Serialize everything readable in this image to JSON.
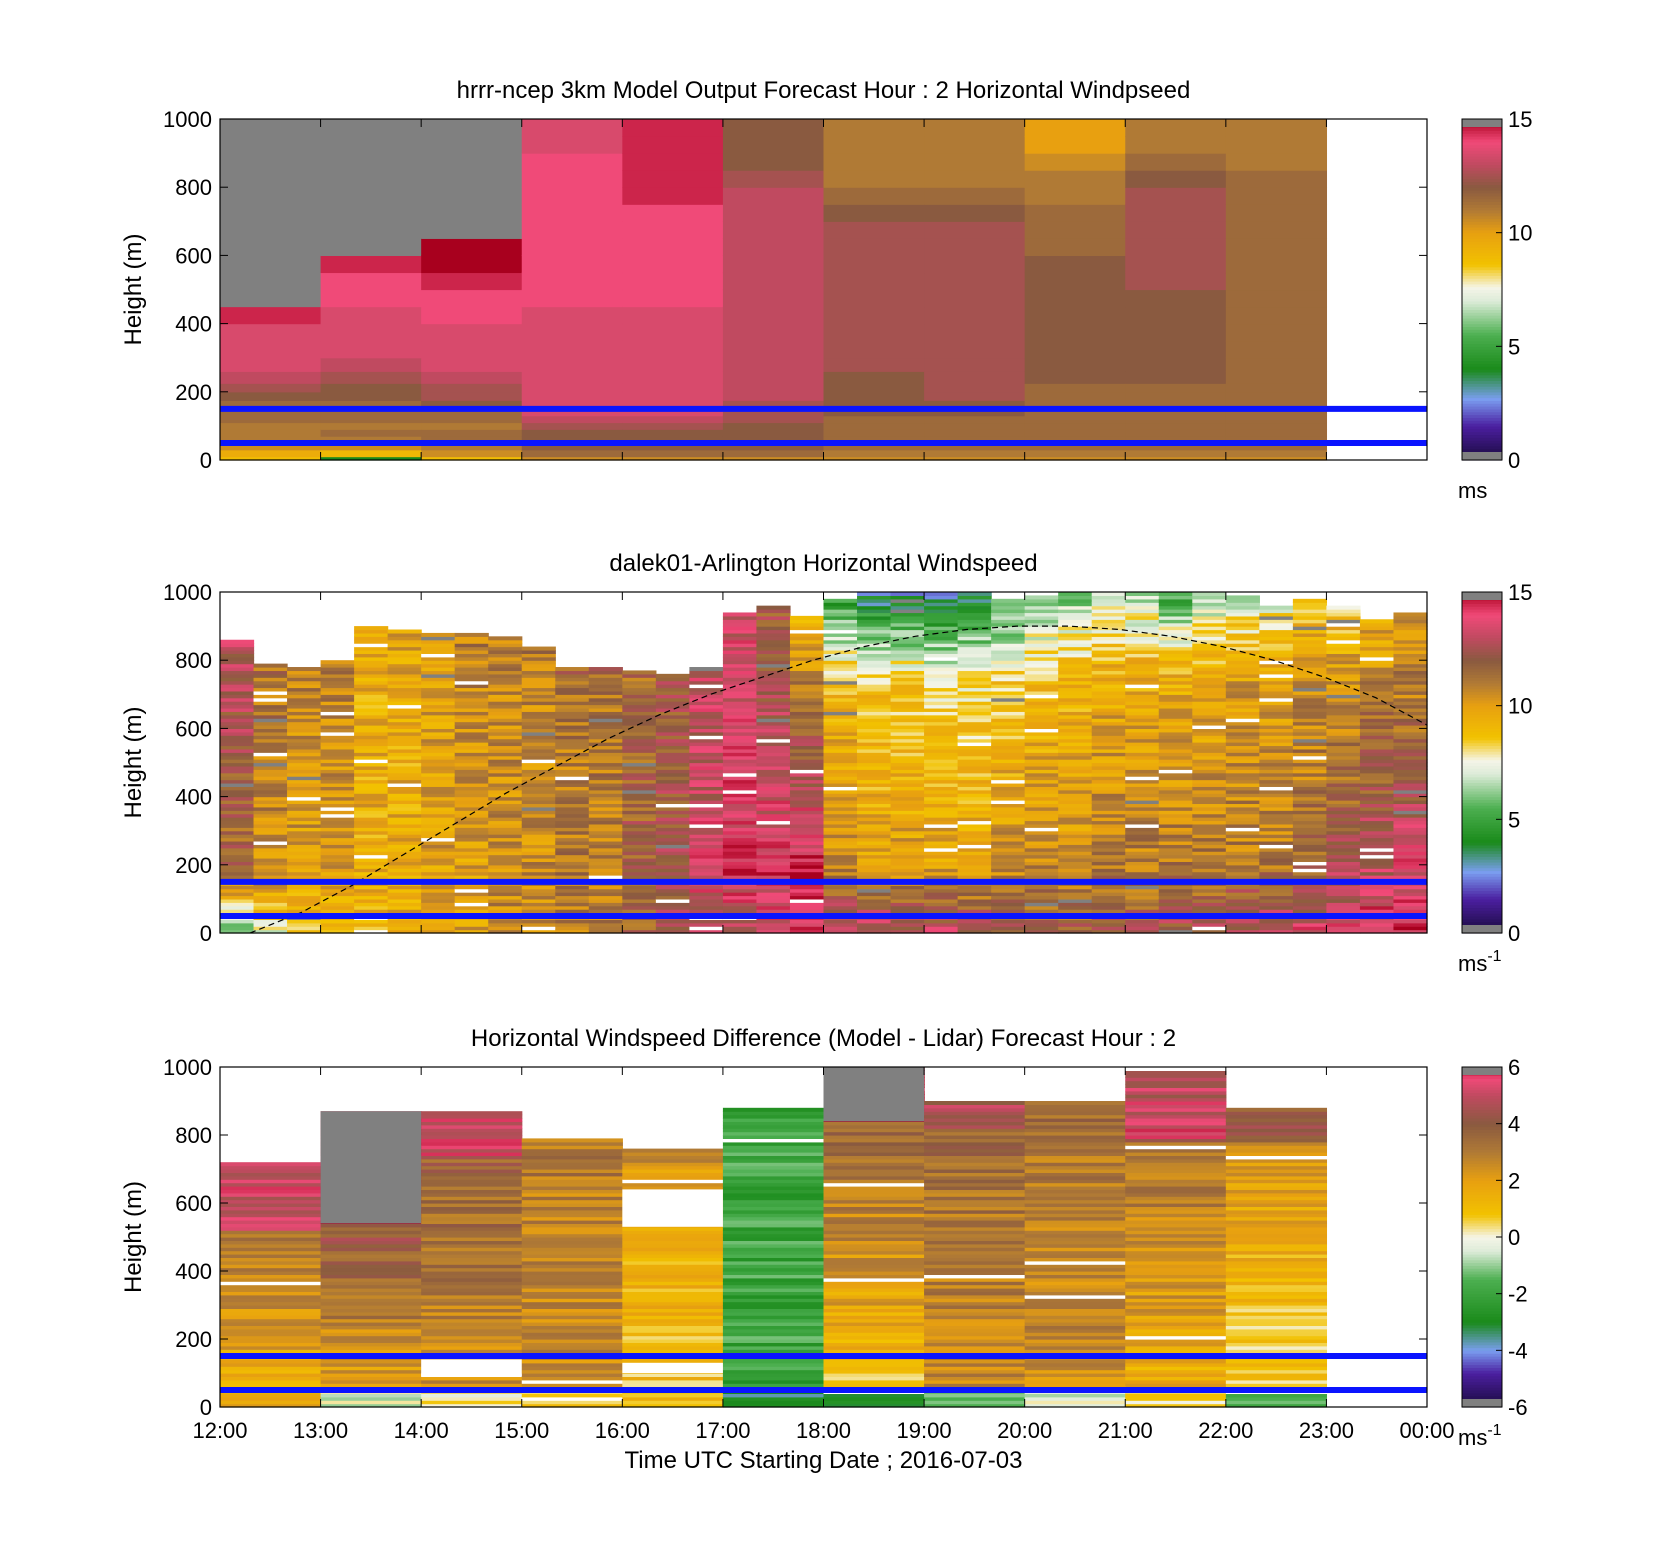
{
  "chart_data": [
    {
      "type": "heatmap",
      "title": "hrrr-ncep 3km Model Output   Forecast Hour : 2 Horizontal Windpseed",
      "ylabel": "Height (m)",
      "ylim": [
        0,
        1000
      ],
      "yticks": [
        "0",
        "200",
        "400",
        "600",
        "800",
        "1000"
      ],
      "x_time_range": [
        "12:00",
        "00:00"
      ],
      "colorbar": {
        "min": 0,
        "max": 15,
        "ticks": [
          "0",
          "5",
          "10",
          "15"
        ],
        "unit": "ms",
        "unit_sup": ""
      },
      "reference_lines_m": [
        150,
        50
      ],
      "hours": [
        "12:00",
        "13:00",
        "14:00",
        "15:00",
        "16:00",
        "17:00",
        "18:00",
        "19:00",
        "20:00",
        "21:00",
        "22:00"
      ],
      "levels_m": [
        10,
        30,
        50,
        70,
        90,
        110,
        130,
        150,
        175,
        200,
        225,
        260,
        300,
        350,
        400,
        450,
        500,
        550,
        600,
        650,
        700,
        750,
        800,
        850,
        900,
        950,
        1000
      ],
      "values_ms": [
        [
          8.8,
          9.5,
          10.5,
          11.0,
          11.0,
          11.0,
          11.5,
          11.5,
          11.5,
          12.0,
          12.5,
          13.0,
          13.5,
          13.5,
          13.5,
          14.5,
          null,
          null,
          null,
          null,
          null,
          null,
          null,
          null,
          null,
          null,
          null
        ],
        [
          4.0,
          9.0,
          10.5,
          11.0,
          11.5,
          11.0,
          11.5,
          11.5,
          11.5,
          12.0,
          12.0,
          12.5,
          13.0,
          13.5,
          13.5,
          13.5,
          14.0,
          14.0,
          14.5,
          null,
          null,
          null,
          null,
          null,
          null,
          null,
          null
        ],
        [
          8.8,
          10.5,
          11.0,
          11.5,
          11.5,
          11.0,
          11.5,
          11.5,
          12.0,
          12.5,
          12.5,
          13.0,
          13.5,
          13.5,
          13.5,
          14.0,
          14.0,
          14.5,
          15.0,
          15.0,
          null,
          null,
          null,
          null,
          null,
          null,
          null
        ],
        [
          10.5,
          11.5,
          12.0,
          12.0,
          12.0,
          12.5,
          13.0,
          13.5,
          13.5,
          13.5,
          13.5,
          13.5,
          13.5,
          13.5,
          13.5,
          13.5,
          14.0,
          14.0,
          14.0,
          14.0,
          14.0,
          14.0,
          14.0,
          14.0,
          14.0,
          13.5,
          13.5
        ],
        [
          10.5,
          11.5,
          12.0,
          12.0,
          12.0,
          12.5,
          13.0,
          13.5,
          13.5,
          13.5,
          13.5,
          13.5,
          13.5,
          13.5,
          13.5,
          13.5,
          14.0,
          14.0,
          14.0,
          14.0,
          14.0,
          14.0,
          14.5,
          14.5,
          14.5,
          14.5,
          14.5
        ],
        [
          10.5,
          11.5,
          12.0,
          12.0,
          12.0,
          12.0,
          12.5,
          12.5,
          12.5,
          13.0,
          13.0,
          13.0,
          13.0,
          13.0,
          13.0,
          13.0,
          13.0,
          13.0,
          13.0,
          13.0,
          13.0,
          13.0,
          13.0,
          12.5,
          12.0,
          12.0,
          12.0
        ],
        [
          10.5,
          11.0,
          11.5,
          11.5,
          11.5,
          11.5,
          11.5,
          12.0,
          12.0,
          12.0,
          12.0,
          12.0,
          12.5,
          12.5,
          12.5,
          12.5,
          12.5,
          12.5,
          12.5,
          12.5,
          12.5,
          12.0,
          11.5,
          11.0,
          11.0,
          11.0,
          11.0
        ],
        [
          10.5,
          11.0,
          11.5,
          11.5,
          11.5,
          11.5,
          11.5,
          12.0,
          12.0,
          12.5,
          12.5,
          12.5,
          12.5,
          12.5,
          12.5,
          12.5,
          12.5,
          12.5,
          12.5,
          12.5,
          12.5,
          12.0,
          11.5,
          11.0,
          11.0,
          11.0,
          11.0
        ],
        [
          10.5,
          11.0,
          11.5,
          11.5,
          11.5,
          11.5,
          11.5,
          11.5,
          11.5,
          11.5,
          11.5,
          12.0,
          12.0,
          12.0,
          12.0,
          12.0,
          12.0,
          12.0,
          12.0,
          11.5,
          11.5,
          11.5,
          11.0,
          11.0,
          10.5,
          10.0,
          10.0
        ],
        [
          10.5,
          11.0,
          11.5,
          11.5,
          11.5,
          11.5,
          11.5,
          11.5,
          11.5,
          11.5,
          11.5,
          12.0,
          12.0,
          12.0,
          12.0,
          12.0,
          12.0,
          12.5,
          12.5,
          12.5,
          12.5,
          12.5,
          12.5,
          12.0,
          11.5,
          11.0,
          11.0
        ],
        [
          10.5,
          11.0,
          11.5,
          11.5,
          11.5,
          11.5,
          11.5,
          11.5,
          11.5,
          11.5,
          11.5,
          11.5,
          11.5,
          11.5,
          11.5,
          11.5,
          11.5,
          11.5,
          11.5,
          11.5,
          11.5,
          11.5,
          11.5,
          11.5,
          11.0,
          11.0,
          11.0
        ]
      ]
    },
    {
      "type": "heatmap",
      "title": "dalek01-Arlington  Horizontal Windspeed",
      "ylabel": "Height (m)",
      "ylim": [
        0,
        1000
      ],
      "yticks": [
        "0",
        "200",
        "400",
        "600",
        "800",
        "1000"
      ],
      "x_time_range": [
        "12:00",
        "00:00"
      ],
      "colorbar": {
        "min": 0,
        "max": 15,
        "ticks": [
          "0",
          "5",
          "10",
          "15"
        ],
        "unit": "ms",
        "unit_sup": "-1"
      },
      "reference_lines_m": [
        150,
        50
      ],
      "column_times": [
        "12:00",
        "12:20",
        "12:40",
        "13:00",
        "13:20",
        "13:40",
        "14:00",
        "14:20",
        "14:40",
        "15:00",
        "15:20",
        "15:40",
        "16:00",
        "16:20",
        "16:40",
        "17:00",
        "17:20",
        "17:40",
        "18:00",
        "18:20",
        "18:40",
        "19:00",
        "19:20",
        "19:40",
        "20:00",
        "20:20",
        "20:40",
        "21:00",
        "21:20",
        "21:40",
        "22:00",
        "22:20",
        "22:40",
        "23:00",
        "23:20",
        "23:40"
      ],
      "top_of_data_m": [
        860,
        790,
        780,
        800,
        900,
        890,
        880,
        880,
        870,
        840,
        780,
        780,
        770,
        760,
        780,
        940,
        960,
        930,
        980,
        1000,
        1000,
        1000,
        1000,
        980,
        990,
        1000,
        1000,
        1000,
        1000,
        1000,
        990,
        960,
        980,
        960,
        920,
        940
      ],
      "low_level_speed_ms": [
        6.0,
        7.5,
        8.5,
        9.0,
        9.0,
        9.5,
        9.5,
        10.0,
        10.5,
        10.5,
        11.0,
        11.0,
        11.5,
        12.0,
        12.5,
        13.0,
        13.5,
        14.0,
        13.5,
        13.5,
        13.0,
        13.0,
        12.5,
        12.5,
        12.0,
        12.0,
        12.0,
        12.0,
        12.5,
        12.5,
        13.0,
        13.0,
        13.5,
        13.5,
        14.0,
        14.0
      ],
      "mid_level_speed_ms": [
        11.5,
        10.5,
        10.0,
        10.0,
        9.5,
        9.5,
        10.0,
        10.0,
        10.5,
        10.5,
        11.0,
        11.0,
        12.0,
        12.5,
        13.5,
        14.0,
        14.0,
        14.5,
        10.5,
        10.0,
        10.0,
        10.0,
        10.0,
        10.5,
        10.5,
        10.5,
        11.0,
        11.0,
        11.0,
        11.0,
        11.0,
        11.0,
        11.5,
        12.5,
        13.0,
        13.5
      ],
      "upper_level_speed_ms": [
        12.5,
        11.0,
        10.5,
        10.5,
        9.5,
        9.5,
        10.0,
        10.5,
        10.5,
        10.5,
        11.0,
        11.0,
        11.5,
        12.0,
        13.0,
        13.5,
        12.5,
        11.0,
        9.0,
        8.5,
        8.5,
        8.0,
        8.0,
        8.5,
        9.0,
        9.0,
        9.5,
        9.5,
        9.5,
        9.5,
        10.0,
        10.0,
        10.5,
        10.5,
        11.0,
        11.0
      ],
      "top_speed_ms": [
        13.0,
        11.5,
        11.0,
        11.0,
        10.0,
        10.0,
        10.5,
        11.0,
        11.0,
        11.0,
        11.5,
        11.5,
        11.5,
        12.5,
        13.5,
        13.5,
        12.0,
        9.0,
        4.5,
        3.0,
        3.0,
        2.5,
        3.5,
        5.0,
        5.5,
        6.0,
        7.0,
        6.5,
        5.0,
        6.5,
        7.0,
        7.5,
        8.5,
        8.5,
        9.5,
        10.5
      ],
      "boundary_layer_height_m": [
        0,
        60,
        140,
        230,
        320,
        410,
        490,
        570,
        640,
        700,
        750,
        800,
        840,
        870,
        890,
        900,
        900,
        890,
        870,
        840,
        800,
        750,
        690,
        610
      ]
    },
    {
      "type": "heatmap",
      "title": "Horizontal Windspeed Difference (Model - Lidar) Forecast Hour : 2",
      "ylabel": "Height (m)",
      "xlabel": "Time UTC  Starting Date ; 2016-07-03",
      "ylim": [
        0,
        1000
      ],
      "yticks": [
        "0",
        "200",
        "400",
        "600",
        "800",
        "1000"
      ],
      "xticks": [
        "12:00",
        "13:00",
        "14:00",
        "15:00",
        "16:00",
        "17:00",
        "18:00",
        "19:00",
        "20:00",
        "21:00",
        "22:00",
        "23:00",
        "00:00"
      ],
      "colorbar": {
        "min": -6,
        "max": 6,
        "ticks": [
          "-6",
          "-4",
          "-2",
          "0",
          "2",
          "4",
          "6"
        ],
        "unit": "ms",
        "unit_sup": "-1"
      },
      "reference_lines_m": [
        150,
        50
      ],
      "hours": [
        "12:00",
        "13:00",
        "14:00",
        "15:00",
        "16:00",
        "17:00",
        "18:00",
        "19:00",
        "20:00",
        "21:00",
        "22:00"
      ],
      "top_of_data_m": [
        720,
        870,
        870,
        790,
        760,
        880,
        1000,
        900,
        900,
        1000,
        880
      ],
      "upper_block_m": [
        [
          520,
          5.0
        ],
        [
          540,
          6.5
        ],
        [
          740,
          5.0
        ],
        [
          640,
          3.0
        ],
        [
          700,
          2.5
        ],
        [
          820,
          -2.0
        ],
        [
          840,
          6.5
        ],
        [
          820,
          4.5
        ],
        [
          800,
          3.5
        ],
        [
          780,
          5.0
        ],
        [
          780,
          4.0
        ]
      ],
      "lower_diff_ms": [
        1.5,
        2.0,
        2.5,
        2.5,
        1.0,
        -2.0,
        1.0,
        2.5,
        2.5,
        1.5,
        0.5
      ],
      "surface_diff_ms": [
        1.5,
        -0.5,
        0.5,
        0.5,
        1.0,
        -3.0,
        -3.0,
        -1.0,
        -0.5,
        0.5,
        -2.0
      ]
    }
  ]
}
